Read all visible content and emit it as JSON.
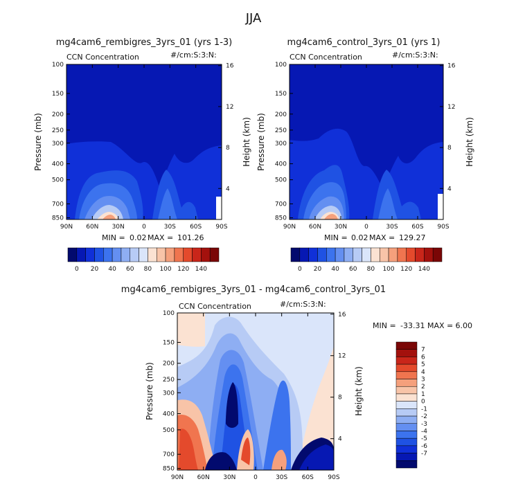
{
  "season": "JJA",
  "colors": {
    "abs_scale": [
      "#020a6e",
      "#0618b3",
      "#1030d8",
      "#1f52e3",
      "#3c73ee",
      "#648ff1",
      "#8eaef3",
      "#b7cbf5",
      "#dae5fa",
      "#fbe2d2",
      "#f8c4a8",
      "#f5a07c",
      "#f0754f",
      "#e44a2c",
      "#c9261a",
      "#a3110d",
      "#7a0606"
    ],
    "diff_scale": [
      "#7a0606",
      "#a3110d",
      "#c9261a",
      "#e44a2c",
      "#f0754f",
      "#f5a07c",
      "#f8c4a8",
      "#fbe2d2",
      "#dae5fa",
      "#b7cbf5",
      "#8eaef3",
      "#648ff1",
      "#3c73ee",
      "#1f52e3",
      "#1030d8",
      "#0618b3",
      "#020a6e"
    ]
  },
  "chart_data": [
    {
      "type": "heatmap",
      "id": "panel_left",
      "title": "mg4cam6_rembigres_3yrs_01 (yrs 1-3)",
      "field_label": "CCN Concentration",
      "units": "#/cm:S:3:N:",
      "xlabel": "",
      "ylabel": "Pressure (mb)",
      "y2label": "Height (km)",
      "x_ticks": [
        "90N",
        "60N",
        "30N",
        "0",
        "30S",
        "60S",
        "90S"
      ],
      "y_ticks": [
        "100",
        "150",
        "200",
        "250",
        "300",
        "400",
        "500",
        "700",
        "850"
      ],
      "y2_ticks": [
        "16",
        "12",
        "8",
        "4"
      ],
      "min": 0.02,
      "max": 101.26,
      "min_label": "MIN =",
      "max_label": "MAX =",
      "min_text": "0.02",
      "max_text": "101.26"
    },
    {
      "type": "heatmap",
      "id": "panel_right",
      "title": "mg4cam6_control_3yrs_01 (yrs 1)",
      "field_label": "CCN Concentration",
      "units": "#/cm:S:3:N:",
      "xlabel": "",
      "ylabel": "Pressure (mb)",
      "y2label": "Height (km)",
      "x_ticks": [
        "90N",
        "60N",
        "30N",
        "0",
        "30S",
        "60S",
        "90S"
      ],
      "y_ticks": [
        "100",
        "150",
        "200",
        "250",
        "300",
        "400",
        "500",
        "700",
        "850"
      ],
      "y2_ticks": [
        "16",
        "12",
        "8",
        "4"
      ],
      "min": 0.02,
      "max": 129.27,
      "min_label": "MIN =",
      "max_label": "MAX =",
      "min_text": "0.02",
      "max_text": "129.27"
    },
    {
      "type": "heatmap",
      "id": "panel_diff",
      "title": "mg4cam6_rembigres_3yrs_01 - mg4cam6_control_3yrs_01",
      "field_label": "CCN Concentration",
      "units": "#/cm:S:3:N:",
      "xlabel": "",
      "ylabel": "Pressure (mb)",
      "y2label": "Height (km)",
      "x_ticks": [
        "90N",
        "60N",
        "30N",
        "0",
        "30S",
        "60S",
        "90S"
      ],
      "y_ticks": [
        "100",
        "150",
        "200",
        "250",
        "300",
        "400",
        "500",
        "700",
        "850"
      ],
      "y2_ticks": [
        "16",
        "12",
        "8",
        "4"
      ],
      "min": -33.31,
      "max": 6.0,
      "min_label": "MIN =",
      "max_label": "MAX =",
      "min_text": "-33.31",
      "max_text": "6.00"
    }
  ],
  "abs_colorbar": {
    "labels": [
      "0",
      "20",
      "40",
      "60",
      "80",
      "100",
      "120",
      "140"
    ]
  },
  "diff_colorbar": {
    "labels": [
      "7",
      "6",
      "5",
      "4",
      "3",
      "2",
      "1",
      "0",
      "-1",
      "-2",
      "-3",
      "-4",
      "-5",
      "-6",
      "-7"
    ]
  }
}
